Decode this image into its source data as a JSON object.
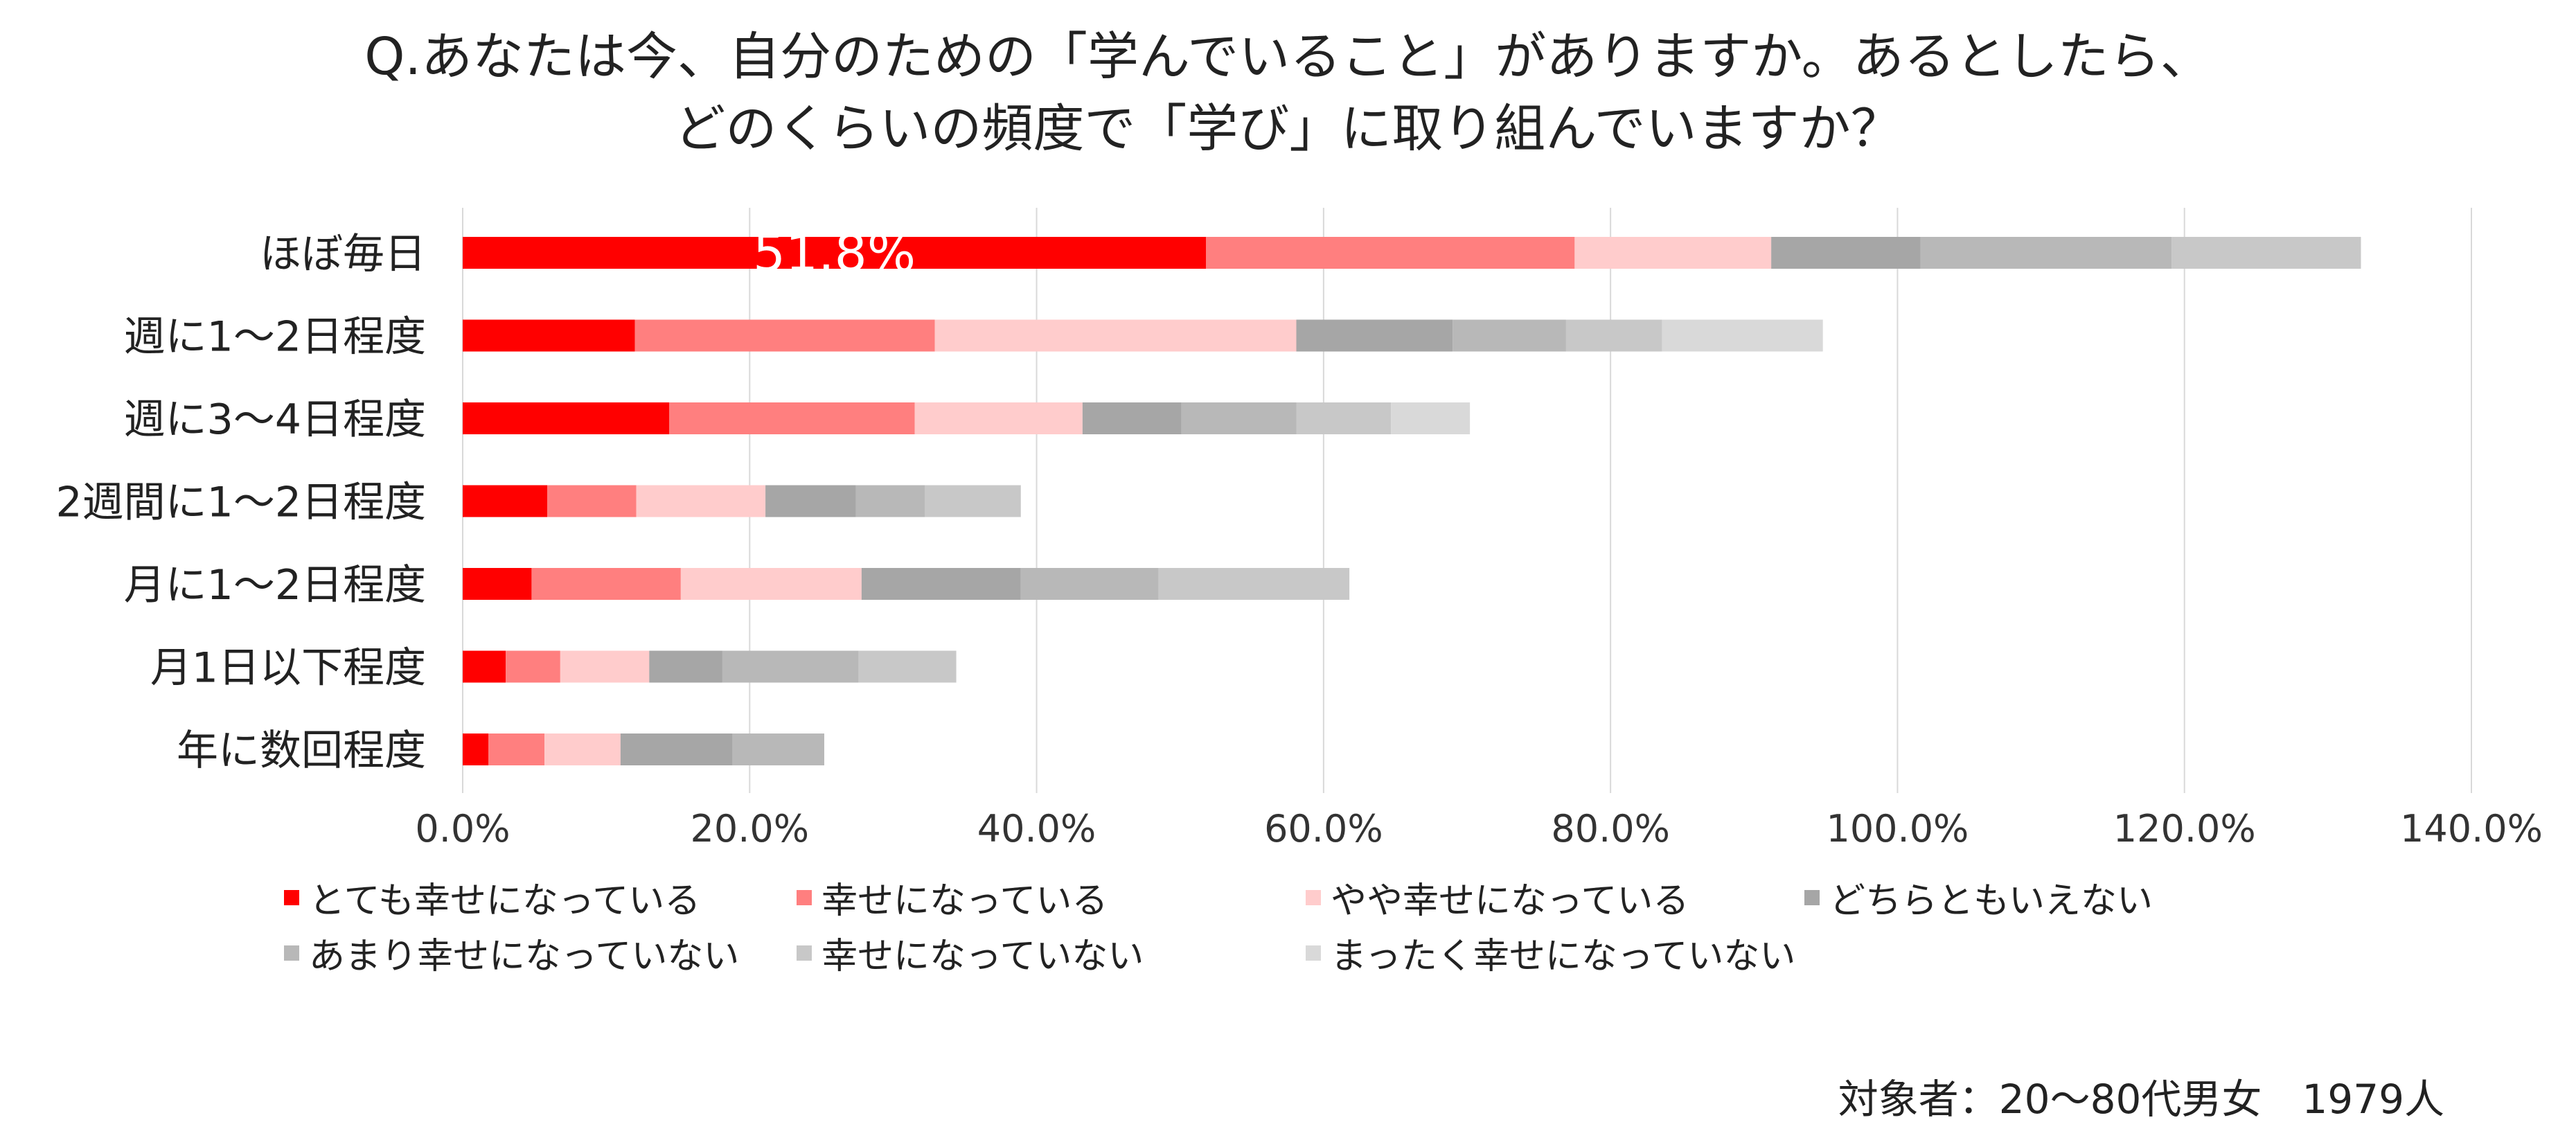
{
  "title": {
    "line1": "Q.あなたは今、自分のための「学んでいること」がありますか。あるとしたら、",
    "line2": "どのくらいの頻度で「学び」に取り組んでいますか？"
  },
  "footnote": "対象者：20～80代男女　1979人",
  "chart_data": {
    "type": "bar",
    "orientation": "horizontal",
    "stacked": true,
    "categories": [
      "ほぼ毎日",
      "週に1～2日程度",
      "週に3～4日程度",
      "2週間に1～2日程度",
      "月に1～2日程度",
      "月1日以下程度",
      "年に数回程度"
    ],
    "x_ticks": [
      "0.0%",
      "20.0%",
      "40.0%",
      "60.0%",
      "80.0%",
      "100.0%",
      "120.0%",
      "140.0%"
    ],
    "xlim": [
      0,
      140
    ],
    "grid": true,
    "legend_position": "bottom",
    "series": [
      {
        "name": "とても幸せになっている",
        "color": "#ff0000",
        "values": [
          51.8,
          12.0,
          14.4,
          5.9,
          4.8,
          3.0,
          1.8
        ]
      },
      {
        "name": "幸せになっている",
        "color": "#ff7f7f",
        "values": [
          25.7,
          20.9,
          17.1,
          6.2,
          10.4,
          3.8,
          3.9
        ]
      },
      {
        "name": "やや幸せになっている",
        "color": "#ffcccc",
        "values": [
          13.7,
          25.2,
          11.7,
          9.0,
          12.6,
          6.2,
          5.3
        ]
      },
      {
        "name": "どちらともいえない",
        "color": "#a6a6a6",
        "values": [
          10.4,
          10.9,
          6.9,
          6.3,
          11.1,
          5.1,
          7.8
        ]
      },
      {
        "name": "あまり幸せになっていない",
        "color": "#b8b8b8",
        "values": [
          17.5,
          7.9,
          8.0,
          4.8,
          9.6,
          9.5,
          6.4
        ]
      },
      {
        "name": "幸せになっていない",
        "color": "#c8c8c8",
        "values": [
          13.2,
          6.7,
          6.6,
          6.7,
          13.3,
          6.8,
          0
        ]
      },
      {
        "name": "まったく幸せになっていない",
        "color": "#d9d9d9",
        "values": [
          0,
          11.2,
          5.5,
          0,
          0,
          0,
          0
        ]
      }
    ],
    "data_labels": [
      {
        "category": "ほぼ毎日",
        "series": "とても幸せになっている",
        "text": "51.8%"
      }
    ]
  }
}
